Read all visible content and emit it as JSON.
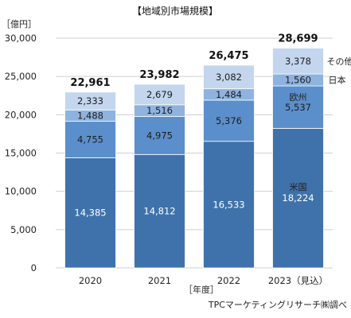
{
  "chart_data": {
    "type": "bar",
    "stacked": true,
    "title": "【地域別市場規模】",
    "unit_label": "［億円］",
    "xlabel": "［年度］",
    "source": "TPCマーケティングリサーチ㈱調べ",
    "categories": [
      "2020",
      "2021",
      "2022",
      "2023（見込）"
    ],
    "series": [
      {
        "name": "米国",
        "color": "#3f72aa",
        "label_color": "#ffffff",
        "values": [
          14385,
          14812,
          16533,
          18224
        ]
      },
      {
        "name": "欧州",
        "color": "#5b8fcb",
        "label_color": "#1c1c1c",
        "values": [
          4755,
          4975,
          5376,
          5537
        ]
      },
      {
        "name": "日本",
        "color": "#8fb3df",
        "label_color": "#1c1c1c",
        "values": [
          1488,
          1516,
          1484,
          1560
        ]
      },
      {
        "name": "その他",
        "color": "#c3d6ee",
        "label_color": "#1c1c1c",
        "values": [
          2333,
          2679,
          3082,
          3378
        ]
      }
    ],
    "value_labels": [
      [
        "14,385",
        "14,812",
        "16,533",
        "18,224"
      ],
      [
        "4,755",
        "4,975",
        "5,376",
        "5,537"
      ],
      [
        "1,488",
        "1,516",
        "1,484",
        "1,560"
      ],
      [
        "2,333",
        "2,679",
        "3,082",
        "3,378"
      ]
    ],
    "totals": [
      "22,961",
      "23,982",
      "26,475",
      "28,699"
    ],
    "ylim": [
      0,
      30000
    ],
    "yticks": [
      0,
      5000,
      10000,
      15000,
      20000,
      25000,
      30000
    ],
    "ytick_labels": [
      "0",
      "5,000",
      "10,000",
      "15,000",
      "20,000",
      "25,000",
      "30,000"
    ],
    "grid": true,
    "axis_color": "#cfcfcf"
  }
}
